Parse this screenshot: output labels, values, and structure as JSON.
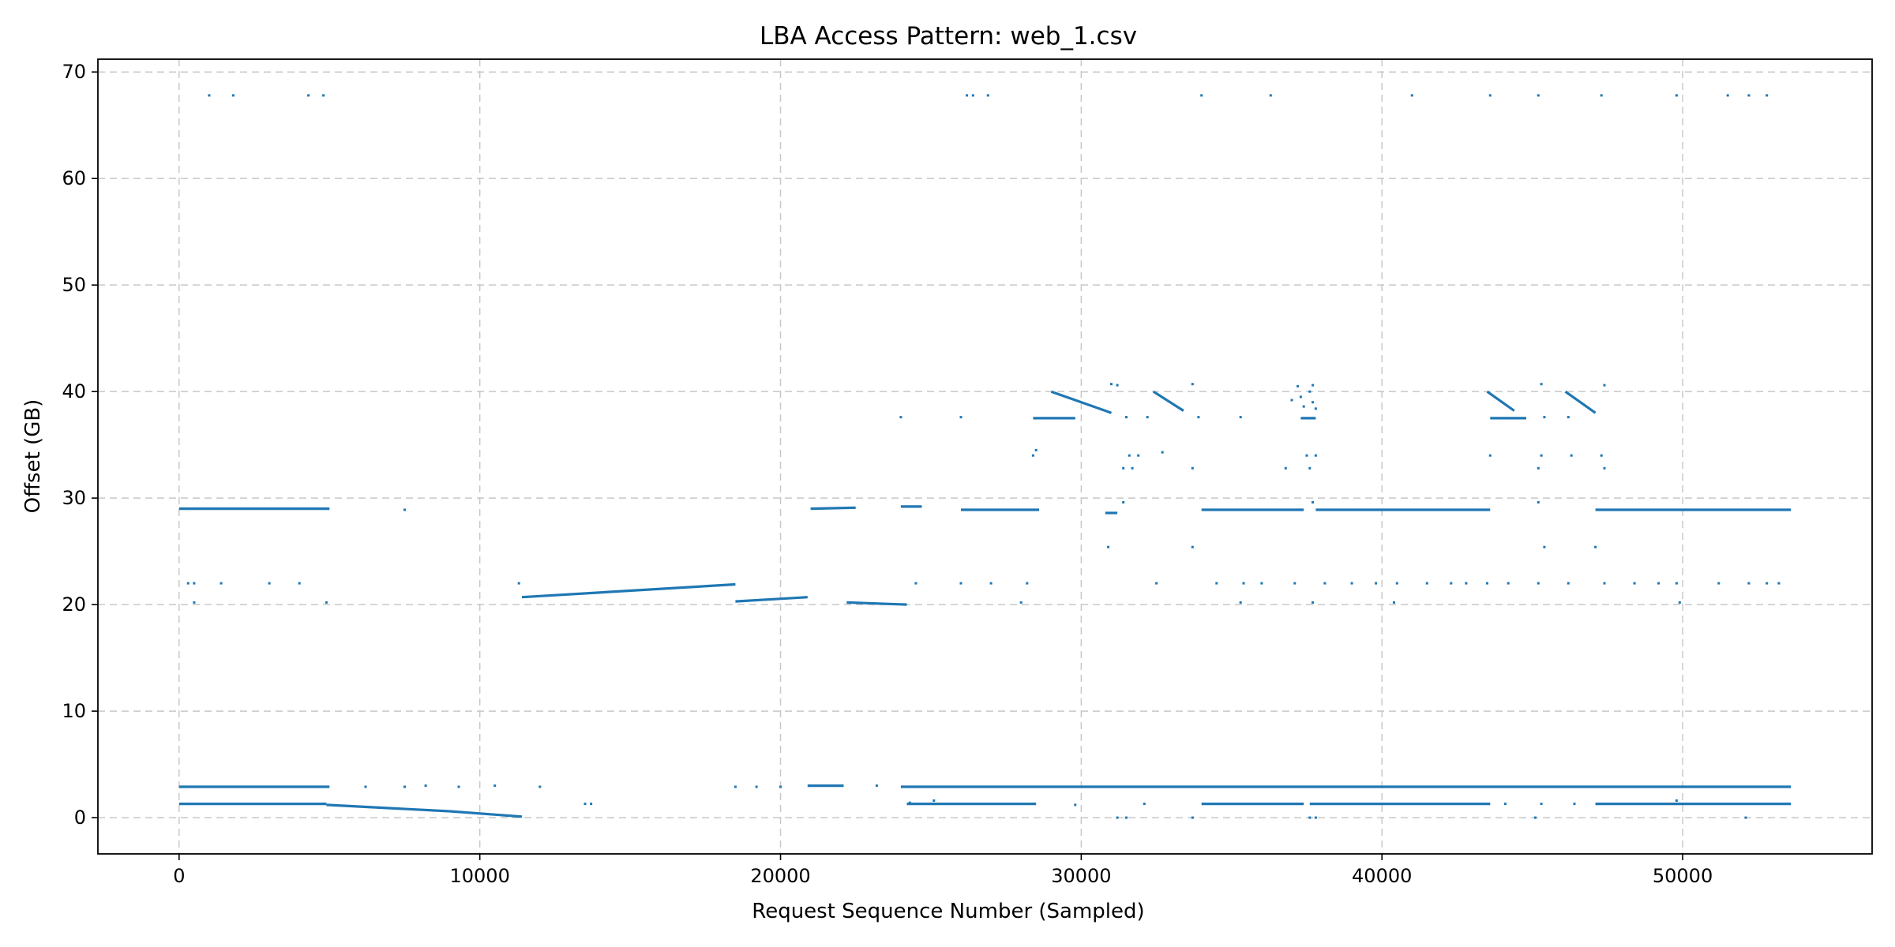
{
  "chart_data": {
    "type": "scatter",
    "title": "LBA Access Pattern: web_1.csv",
    "xlabel": "Request Sequence Number (Sampled)",
    "ylabel": "Offset (GB)",
    "xlim": [
      -2700,
      56300
    ],
    "ylim": [
      -3.4,
      71.2
    ],
    "xticks": [
      0,
      10000,
      20000,
      30000,
      40000,
      50000
    ],
    "yticks": [
      0,
      10,
      20,
      30,
      40,
      50,
      60,
      70
    ],
    "grid": true,
    "marker_color": "#1f77b4",
    "series": [
      {
        "segments": [
          {
            "x": [
              0,
              5000
            ],
            "y": [
              2.9,
              2.9
            ]
          },
          {
            "x": [
              0,
              4900
            ],
            "y": [
              1.3,
              1.3
            ]
          },
          {
            "x": [
              4900,
              9000
            ],
            "y": [
              1.2,
              0.6
            ]
          },
          {
            "x": [
              9000,
              11400
            ],
            "y": [
              0.6,
              0.1
            ]
          },
          {
            "x": [
              0,
              5000
            ],
            "y": [
              29.0,
              29.0
            ]
          },
          {
            "x": [
              11400,
              18500
            ],
            "y": [
              20.7,
              21.9
            ]
          },
          {
            "x": [
              18500,
              20900
            ],
            "y": [
              20.3,
              20.7
            ]
          },
          {
            "x": [
              21000,
              22500
            ],
            "y": [
              29.0,
              29.1
            ]
          },
          {
            "x": [
              22200,
              24200
            ],
            "y": [
              20.2,
              20.0
            ]
          },
          {
            "x": [
              24000,
              24700
            ],
            "y": [
              29.2,
              29.2
            ]
          },
          {
            "x": [
              20900,
              22100
            ],
            "y": [
              3.0,
              3.0
            ]
          },
          {
            "x": [
              24000,
              53600
            ],
            "y": [
              2.9,
              2.9
            ]
          },
          {
            "x": [
              24200,
              28500
            ],
            "y": [
              1.3,
              1.3
            ]
          },
          {
            "x": [
              34000,
              37400
            ],
            "y": [
              1.3,
              1.3
            ]
          },
          {
            "x": [
              37600,
              43600
            ],
            "y": [
              1.3,
              1.3
            ]
          },
          {
            "x": [
              47100,
              53600
            ],
            "y": [
              1.3,
              1.3
            ]
          },
          {
            "x": [
              26000,
              28600
            ],
            "y": [
              28.9,
              28.9
            ]
          },
          {
            "x": [
              34000,
              37400
            ],
            "y": [
              28.9,
              28.9
            ]
          },
          {
            "x": [
              37800,
              43600
            ],
            "y": [
              28.9,
              28.9
            ]
          },
          {
            "x": [
              47100,
              53600
            ],
            "y": [
              28.9,
              28.9
            ]
          },
          {
            "x": [
              29000,
              31000
            ],
            "y": [
              40.0,
              38.0
            ]
          },
          {
            "x": [
              32400,
              33400
            ],
            "y": [
              40.0,
              38.2
            ]
          },
          {
            "x": [
              43500,
              44400
            ],
            "y": [
              40.0,
              38.2
            ]
          },
          {
            "x": [
              46100,
              47100
            ],
            "y": [
              40.0,
              38.0
            ]
          },
          {
            "x": [
              28400,
              29800
            ],
            "y": [
              37.5,
              37.5
            ]
          },
          {
            "x": [
              43600,
              44800
            ],
            "y": [
              37.5,
              37.5
            ]
          },
          {
            "x": [
              37300,
              37800
            ],
            "y": [
              37.5,
              37.5
            ]
          },
          {
            "x": [
              30800,
              31200
            ],
            "y": [
              28.6,
              28.6
            ]
          }
        ],
        "points": [
          [
            1000,
            67.8
          ],
          [
            1800,
            67.8
          ],
          [
            4300,
            67.8
          ],
          [
            4800,
            67.8
          ],
          [
            26200,
            67.8
          ],
          [
            26400,
            67.8
          ],
          [
            26900,
            67.8
          ],
          [
            34000,
            67.8
          ],
          [
            36300,
            67.8
          ],
          [
            41000,
            67.8
          ],
          [
            43600,
            67.8
          ],
          [
            45200,
            67.8
          ],
          [
            47300,
            67.8
          ],
          [
            49800,
            67.8
          ],
          [
            51500,
            67.8
          ],
          [
            52200,
            67.8
          ],
          [
            52800,
            67.8
          ],
          [
            300,
            22.0
          ],
          [
            500,
            22.0
          ],
          [
            1400,
            22.0
          ],
          [
            3000,
            22.0
          ],
          [
            4000,
            22.0
          ],
          [
            11300,
            22.0
          ],
          [
            24500,
            22.0
          ],
          [
            26000,
            22.0
          ],
          [
            27000,
            22.0
          ],
          [
            28200,
            22.0
          ],
          [
            32500,
            22.0
          ],
          [
            34500,
            22.0
          ],
          [
            35400,
            22.0
          ],
          [
            36000,
            22.0
          ],
          [
            37100,
            22.0
          ],
          [
            38100,
            22.0
          ],
          [
            39000,
            22.0
          ],
          [
            39800,
            22.0
          ],
          [
            40500,
            22.0
          ],
          [
            41500,
            22.0
          ],
          [
            42300,
            22.0
          ],
          [
            42800,
            22.0
          ],
          [
            43500,
            22.0
          ],
          [
            44200,
            22.0
          ],
          [
            45200,
            22.0
          ],
          [
            46200,
            22.0
          ],
          [
            47400,
            22.0
          ],
          [
            48400,
            22.0
          ],
          [
            49200,
            22.0
          ],
          [
            49800,
            22.0
          ],
          [
            51200,
            22.0
          ],
          [
            52200,
            22.0
          ],
          [
            52800,
            22.0
          ],
          [
            53200,
            22.0
          ],
          [
            500,
            20.2
          ],
          [
            4900,
            20.2
          ],
          [
            28000,
            20.2
          ],
          [
            35300,
            20.2
          ],
          [
            37700,
            20.2
          ],
          [
            40400,
            20.2
          ],
          [
            49900,
            20.2
          ],
          [
            7500,
            28.9
          ],
          [
            30900,
            25.4
          ],
          [
            33700,
            25.4
          ],
          [
            45400,
            25.4
          ],
          [
            47100,
            25.4
          ],
          [
            31400,
            29.6
          ],
          [
            37700,
            29.6
          ],
          [
            45200,
            29.6
          ],
          [
            28400,
            34.0
          ],
          [
            28500,
            34.5
          ],
          [
            31600,
            34.0
          ],
          [
            31900,
            34.0
          ],
          [
            32700,
            34.3
          ],
          [
            37500,
            34.0
          ],
          [
            37800,
            34.0
          ],
          [
            43600,
            34.0
          ],
          [
            45300,
            34.0
          ],
          [
            46300,
            34.0
          ],
          [
            47300,
            34.0
          ],
          [
            31400,
            32.8
          ],
          [
            31700,
            32.8
          ],
          [
            33700,
            32.8
          ],
          [
            36800,
            32.8
          ],
          [
            37600,
            32.8
          ],
          [
            45200,
            32.8
          ],
          [
            47400,
            32.8
          ],
          [
            31000,
            40.7
          ],
          [
            31200,
            40.6
          ],
          [
            33700,
            40.7
          ],
          [
            37200,
            40.5
          ],
          [
            37700,
            40.6
          ],
          [
            45300,
            40.7
          ],
          [
            47400,
            40.6
          ],
          [
            37000,
            39.2
          ],
          [
            37300,
            39.5
          ],
          [
            37400,
            38.6
          ],
          [
            37600,
            40.0
          ],
          [
            37700,
            39.0
          ],
          [
            37800,
            38.4
          ],
          [
            24000,
            37.6
          ],
          [
            26000,
            37.6
          ],
          [
            31500,
            37.6
          ],
          [
            32200,
            37.6
          ],
          [
            33900,
            37.6
          ],
          [
            35300,
            37.6
          ],
          [
            45400,
            37.6
          ],
          [
            46200,
            37.6
          ],
          [
            31200,
            0.0
          ],
          [
            31500,
            0.0
          ],
          [
            33700,
            0.0
          ],
          [
            37600,
            0.0
          ],
          [
            37800,
            0.0
          ],
          [
            45100,
            0.0
          ],
          [
            52100,
            0.0
          ],
          [
            13500,
            1.3
          ],
          [
            13700,
            1.3
          ],
          [
            6200,
            2.9
          ],
          [
            7500,
            2.9
          ],
          [
            8200,
            3.0
          ],
          [
            9300,
            2.9
          ],
          [
            10500,
            3.0
          ],
          [
            12000,
            2.9
          ],
          [
            18500,
            2.9
          ],
          [
            19200,
            2.9
          ],
          [
            20000,
            2.9
          ],
          [
            23200,
            3.0
          ],
          [
            24300,
            1.4
          ],
          [
            25100,
            1.6
          ],
          [
            29800,
            1.2
          ],
          [
            32100,
            1.3
          ],
          [
            44100,
            1.3
          ],
          [
            45300,
            1.3
          ],
          [
            46400,
            1.3
          ],
          [
            49800,
            1.6
          ]
        ]
      }
    ]
  }
}
